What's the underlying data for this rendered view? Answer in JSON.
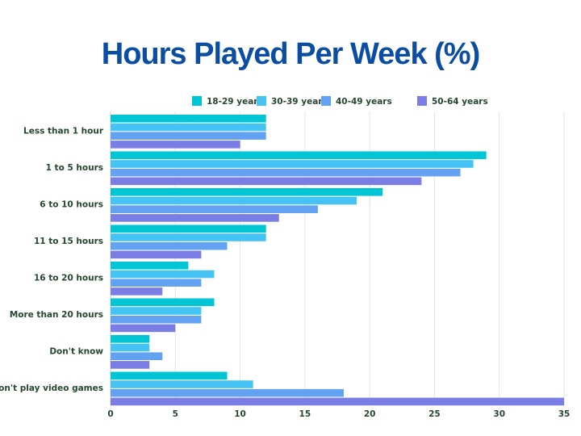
{
  "chart_data": {
    "type": "bar",
    "orientation": "horizontal",
    "title": "Hours Played Per Week (%)",
    "xlabel": "",
    "ylabel": "",
    "xlim": [
      0,
      35
    ],
    "xticks": [
      0,
      5,
      10,
      15,
      20,
      25,
      30,
      35
    ],
    "grid": true,
    "legend_position": "top",
    "categories": [
      "Less than 1 hour",
      "1 to 5 hours",
      "6 to 10 hours",
      "11 to 15 hours",
      "16 to 20 hours",
      "More than 20 hours",
      "Don't know",
      "I don't play video games"
    ],
    "series": [
      {
        "name": "18-29 years",
        "color": "#00c5d5",
        "values": [
          12,
          29,
          21,
          12,
          6,
          8,
          3,
          9
        ]
      },
      {
        "name": "30-39 years",
        "color": "#46c3f5",
        "values": [
          12,
          28,
          19,
          12,
          8,
          7,
          3,
          11
        ]
      },
      {
        "name": "40-49 years",
        "color": "#63a1f2",
        "values": [
          12,
          27,
          16,
          9,
          7,
          7,
          4,
          18
        ]
      },
      {
        "name": "50-64 years",
        "color": "#7a7de3",
        "values": [
          10,
          24,
          13,
          7,
          4,
          5,
          3,
          35
        ]
      }
    ]
  }
}
